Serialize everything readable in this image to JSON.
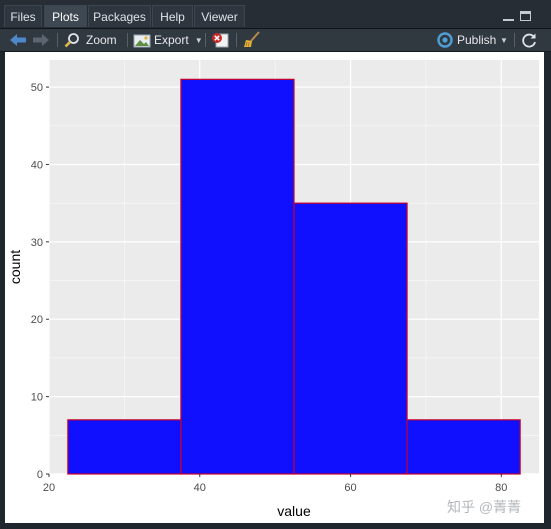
{
  "tabs": [
    {
      "label": "Files",
      "active": false
    },
    {
      "label": "Plots",
      "active": true
    },
    {
      "label": "Packages",
      "active": false
    },
    {
      "label": "Help",
      "active": false
    },
    {
      "label": "Viewer",
      "active": false
    }
  ],
  "toolbar": {
    "zoom_label": "Zoom",
    "export_label": "Export",
    "publish_label": "Publish",
    "icons": [
      "arrow-left-icon",
      "arrow-right-icon",
      "magnifier-icon",
      "export-image-icon",
      "chevron-down-icon",
      "remove-plot-icon",
      "broom-icon",
      "publish-icon",
      "chevron-down-icon"
    ]
  },
  "colors": {
    "bar_fill": "#1010ff",
    "bar_outline": "#c8002a",
    "panel_bg": "#ebebeb",
    "grid": "#ffffff"
  },
  "chart_data": {
    "type": "histogram",
    "bins": [
      {
        "xmin": 22.5,
        "xmax": 37.5,
        "count": 7
      },
      {
        "xmin": 37.5,
        "xmax": 52.5,
        "count": 51
      },
      {
        "xmin": 52.5,
        "xmax": 67.5,
        "count": 35
      },
      {
        "xmin": 67.5,
        "xmax": 82.5,
        "count": 7
      }
    ],
    "xlabel": "value",
    "ylabel": "count",
    "xlim": [
      20,
      85
    ],
    "ylim": [
      0,
      53.5
    ],
    "xticks": [
      20,
      40,
      60,
      80
    ],
    "yticks": [
      0,
      10,
      20,
      30,
      40,
      50
    ],
    "grid": true,
    "legend": "none"
  },
  "watermark": "知乎 @菁菁"
}
